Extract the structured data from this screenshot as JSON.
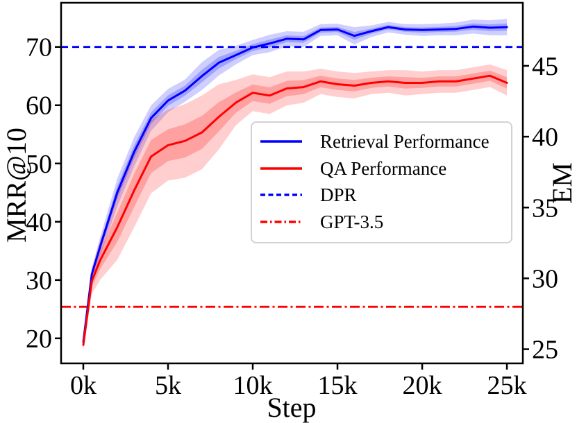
{
  "chart_data": {
    "type": "line",
    "title": "",
    "xlabel": "Step",
    "ylabel_left": "MRR@10",
    "ylabel_right": "EM",
    "grid": false,
    "legend_position": "center right",
    "x_tick_labels": [
      "0k",
      "5k",
      "10k",
      "15k",
      "20k",
      "25k"
    ],
    "x_tick_values": [
      0,
      5,
      10,
      15,
      20,
      25
    ],
    "x_range_k": [
      -1.31,
      25.94
    ],
    "y_left_ticks": [
      20,
      30,
      40,
      50,
      60,
      70
    ],
    "y_left_range": [
      15.7,
      77.7
    ],
    "y_right_ticks": [
      25,
      30,
      35,
      40,
      45
    ],
    "y_right_range": [
      24.0,
      49.5
    ],
    "x_k": [
      0,
      0.5,
      1,
      2,
      3,
      4,
      5,
      6,
      7,
      8,
      9,
      10,
      11,
      12,
      13,
      14,
      15,
      16,
      17,
      18,
      19,
      20,
      21,
      22,
      23,
      24,
      25
    ],
    "series": [
      {
        "name": "Retrieval Performance",
        "axis": "left",
        "metric": "MRR@10",
        "color": "#0000ff",
        "linestyle": "solid",
        "values": [
          19.4,
          31.0,
          35.8,
          45.0,
          52.0,
          57.8,
          60.8,
          62.5,
          65.0,
          67.3,
          68.6,
          69.9,
          70.6,
          71.4,
          71.3,
          72.9,
          73.0,
          71.9,
          72.7,
          73.4,
          73.0,
          72.9,
          73.0,
          73.1,
          73.5,
          73.3,
          73.4
        ],
        "band_halfwidth": [
          0.4,
          1.0,
          1.6,
          2.4,
          2.5,
          2.2,
          2.0,
          1.9,
          2.4,
          2.2,
          1.6,
          1.3,
          1.5,
          1.3,
          1.3,
          1.0,
          1.0,
          1.5,
          1.0,
          0.9,
          0.9,
          1.0,
          1.0,
          1.1,
          1.2,
          1.3,
          1.4
        ]
      },
      {
        "name": "QA Performance",
        "axis": "right",
        "metric": "EM",
        "color": "#ff0000",
        "linestyle": "solid",
        "values": [
          25.3,
          29.8,
          31.3,
          33.6,
          36.2,
          38.6,
          39.4,
          39.7,
          40.3,
          41.4,
          42.4,
          43.1,
          42.9,
          43.4,
          43.5,
          43.9,
          43.7,
          43.6,
          43.8,
          43.9,
          43.8,
          43.8,
          43.9,
          43.9,
          44.1,
          44.3,
          43.8
        ],
        "band_halfwidth": [
          0.4,
          0.9,
          1.4,
          2.3,
          2.6,
          2.6,
          2.5,
          2.6,
          2.6,
          2.3,
          1.6,
          1.3,
          1.3,
          1.2,
          1.1,
          0.9,
          0.9,
          0.9,
          0.8,
          0.8,
          0.9,
          0.8,
          0.8,
          0.8,
          0.8,
          0.8,
          0.9
        ]
      }
    ],
    "baselines": [
      {
        "name": "DPR",
        "axis": "left",
        "value": 70.0,
        "color": "#0000ff",
        "linestyle": "dashed"
      },
      {
        "name": "GPT-3.5",
        "axis": "right",
        "value": 28.0,
        "color": "#ff0000",
        "linestyle": "dashdot"
      }
    ],
    "legend": {
      "entries": [
        {
          "label": "Retrieval Performance",
          "color": "#0000ff",
          "dash": "solid"
        },
        {
          "label": "QA Performance",
          "color": "#ff0000",
          "dash": "solid"
        },
        {
          "label": "DPR",
          "color": "#0000ff",
          "dash": "dashed"
        },
        {
          "label": "GPT-3.5",
          "color": "#ff0000",
          "dash": "dashdot"
        }
      ]
    }
  }
}
